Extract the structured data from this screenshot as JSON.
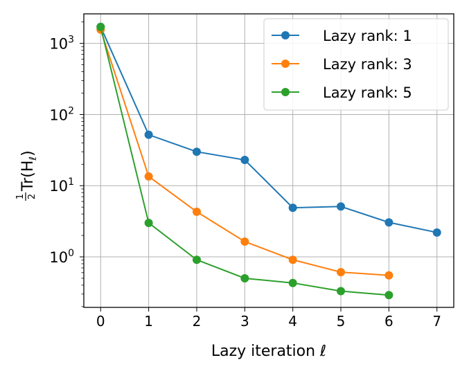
{
  "chart_data": {
    "type": "line",
    "xlabel": "Lazy iteration ℓ",
    "ylabel": {
      "fraction_num": "1",
      "fraction_den": "2",
      "main": "Tr(H",
      "sub": "ℓ",
      "close": ")"
    },
    "yscale": "log",
    "xlim": [
      -0.35,
      7.35
    ],
    "ylim": [
      0.195,
      2600
    ],
    "x_ticks": [
      "0",
      "1",
      "2",
      "3",
      "4",
      "5",
      "6",
      "7"
    ],
    "y_ticks": [
      {
        "base": "10",
        "exp": "0",
        "value": 1
      },
      {
        "base": "10",
        "exp": "1",
        "value": 10
      },
      {
        "base": "10",
        "exp": "2",
        "value": 100
      },
      {
        "base": "10",
        "exp": "3",
        "value": 1000
      }
    ],
    "grid": true,
    "legend_position": "top-right",
    "series": [
      {
        "name": "Lazy rank: 1",
        "color": "#1f77b4",
        "x": [
          0,
          1,
          2,
          3,
          4,
          5,
          6,
          7
        ],
        "y": [
          1710,
          52,
          30,
          23,
          4.9,
          5.1,
          3.05,
          2.2
        ]
      },
      {
        "name": "Lazy rank: 3",
        "color": "#ff7f0e",
        "x": [
          0,
          1,
          2,
          3,
          4,
          5,
          6
        ],
        "y": [
          1560,
          13.5,
          4.3,
          1.64,
          0.91,
          0.61,
          0.55
        ]
      },
      {
        "name": "Lazy rank: 5",
        "color": "#2ca02c",
        "x": [
          0,
          1,
          2,
          3,
          4,
          5,
          6
        ],
        "y": [
          1700,
          3.0,
          0.91,
          0.5,
          0.43,
          0.33,
          0.29
        ]
      }
    ]
  }
}
